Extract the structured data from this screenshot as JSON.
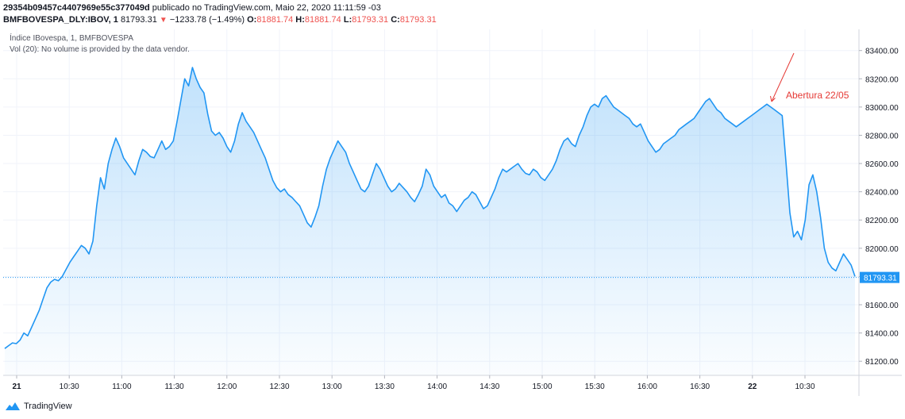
{
  "header": {
    "line1_id": "29354b09457c4407969e55c377049d",
    "line1_rest": " publicado no TradingView.com, Maio 22, 2020 11:11:59 -03",
    "symbol": "BMFBOVESPA_DLY:IBOV, 1",
    "last": "81793.31",
    "change": "−1233.78 (−1.49%)",
    "o_label": "O:",
    "o_value": "81881.74",
    "h_label": "H:",
    "h_value": "81881.74",
    "l_label": "L:",
    "l_value": "81793.31",
    "c_label": "C:",
    "c_value": "81793.31"
  },
  "legend": {
    "series_title": "Índice IBovespa, 1, BMFBOVESPA",
    "volume_note": "Vol (20): No volume is provided by the data vendor."
  },
  "footer": {
    "brand": "TradingView"
  },
  "chart_data": {
    "type": "area",
    "ylim": [
      81100,
      83550
    ],
    "y_ticks": [
      81200,
      81400,
      81600,
      81800,
      82000,
      82200,
      82400,
      82600,
      82800,
      83000,
      83200,
      83400
    ],
    "y_tick_labels": [
      "81200.00",
      "81400.00",
      "81600.00",
      "81800.00",
      "82000.00",
      "82200.00",
      "82400.00",
      "82600.00",
      "82800.00",
      "83000.00",
      "83200.00",
      "83400.00"
    ],
    "x_ticks": [
      "21",
      "10:30",
      "11:00",
      "11:30",
      "12:00",
      "12:30",
      "13:00",
      "13:30",
      "14:00",
      "14:30",
      "15:00",
      "15:30",
      "16:00",
      "16:30",
      "22",
      "10:30"
    ],
    "x_ticks_bold": [
      true,
      false,
      false,
      false,
      false,
      false,
      false,
      false,
      false,
      false,
      false,
      false,
      false,
      false,
      true,
      false
    ],
    "last_value": 81793.31,
    "last_value_label": "81793.31",
    "annotation": {
      "text": "Abertura 22/05"
    },
    "colors": {
      "line": "#2196f3",
      "area": "#2196f3",
      "annotation": "#e53935",
      "grid": "#f0f3fa",
      "price_line": "#2196f3"
    },
    "series": [
      {
        "values": [
          81290,
          81310,
          81330,
          81325,
          81350,
          81400,
          81380,
          81440,
          81500,
          81560,
          81640,
          81720,
          81760,
          81780,
          81770,
          81800,
          81850,
          81900,
          81940,
          81980,
          82020,
          82000,
          81960,
          82050,
          82300,
          82500,
          82420,
          82600,
          82700,
          82780,
          82720,
          82640,
          82600,
          82560,
          82520,
          82620,
          82700,
          82680,
          82650,
          82640,
          82700,
          82760,
          82700,
          82720,
          82760,
          82900,
          83050,
          83200,
          83150,
          83280,
          83200,
          83140,
          83100,
          82950,
          82830,
          82800,
          82820,
          82780,
          82720,
          82680,
          82760,
          82880,
          82960,
          82900,
          82860,
          82820,
          82760,
          82700,
          82640,
          82560,
          82480,
          82430,
          82400,
          82420,
          82380,
          82360,
          82330,
          82300,
          82240,
          82180,
          82150,
          82220,
          82300,
          82440,
          82560,
          82640,
          82700,
          82760,
          82720,
          82680,
          82600,
          82540,
          82480,
          82420,
          82400,
          82440,
          82520,
          82600,
          82560,
          82500,
          82440,
          82400,
          82420,
          82460,
          82430,
          82400,
          82360,
          82330,
          82380,
          82440,
          82560,
          82520,
          82440,
          82400,
          82360,
          82380,
          82320,
          82300,
          82260,
          82300,
          82340,
          82360,
          82400,
          82380,
          82330,
          82280,
          82300,
          82360,
          82420,
          82500,
          82560,
          82540,
          82560,
          82580,
          82600,
          82560,
          82530,
          82520,
          82560,
          82540,
          82500,
          82480,
          82520,
          82560,
          82620,
          82700,
          82760,
          82780,
          82740,
          82720,
          82800,
          82860,
          82940,
          83000,
          83020,
          83000,
          83060,
          83080,
          83040,
          83000,
          82980,
          82960,
          82940,
          82920,
          82880,
          82860,
          82880,
          82820,
          82760,
          82720,
          82680,
          82700,
          82740,
          82760,
          82780,
          82800,
          82840,
          82860,
          82880,
          82900,
          82920,
          82960,
          83000,
          83040,
          83060,
          83020,
          82980,
          82960,
          82920,
          82900,
          82880,
          82860,
          82880,
          82900,
          82920,
          82940,
          82960,
          82980,
          83000,
          83020,
          83000,
          82980,
          82960,
          82940,
          82600,
          82250,
          82080,
          82120,
          82060,
          82200,
          82450,
          82520,
          82400,
          82220,
          82000,
          81900,
          81860,
          81840,
          81900,
          81960,
          81920,
          81880,
          81800
        ]
      }
    ]
  }
}
